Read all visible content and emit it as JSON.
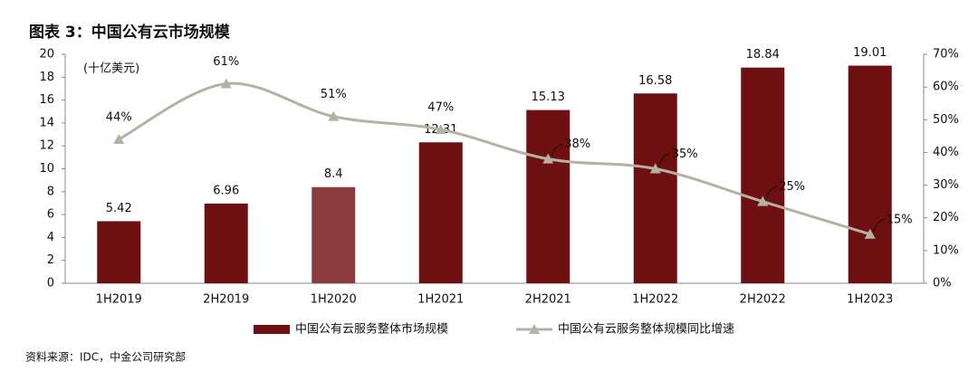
{
  "chart_data": {
    "type": "bar-line",
    "title": "图表 3：中国公有云市场规模",
    "y_label": "(十亿美元)",
    "source": "资料来源：IDC，中金公司研究部",
    "categories": [
      "1H2019",
      "2H2019",
      "1H2020",
      "1H2021",
      "2H2021",
      "1H2022",
      "2H2022",
      "1H2023"
    ],
    "series": [
      {
        "name": "中国公有云服务整体市场规模",
        "type": "bar",
        "color": "#6e1012",
        "colors": [
          "#6e1012",
          "#6e1012",
          "#8c3c3e",
          "#6e1012",
          "#6e1012",
          "#6e1012",
          "#6e1012",
          "#6e1012"
        ],
        "values": [
          5.42,
          6.96,
          8.4,
          12.31,
          15.13,
          16.58,
          18.84,
          19.01
        ]
      },
      {
        "name": "中国公有云服务整体规模同比增速",
        "type": "line",
        "axis": "y2",
        "color": "#b4b2a2",
        "values": [
          44,
          61,
          51,
          47,
          38,
          35,
          25,
          15
        ],
        "value_labels": [
          "44%",
          "61%",
          "51%",
          "47%",
          "38%",
          "35%",
          "25%",
          "15%"
        ]
      }
    ],
    "ylim": [
      0,
      20
    ],
    "yticks": [
      0,
      2,
      4,
      6,
      8,
      10,
      12,
      14,
      16,
      18,
      20
    ],
    "y2lim": [
      0,
      70
    ],
    "y2ticks": [
      {
        "value": 0,
        "label": "0%"
      },
      {
        "value": 10,
        "label": "10%"
      },
      {
        "value": 20,
        "label": "20%"
      },
      {
        "value": 30,
        "label": "30%"
      },
      {
        "value": 40,
        "label": "40%"
      },
      {
        "value": 50,
        "label": "50%"
      },
      {
        "value": 60,
        "label": "60%"
      },
      {
        "value": 70,
        "label": "70%"
      }
    ]
  }
}
